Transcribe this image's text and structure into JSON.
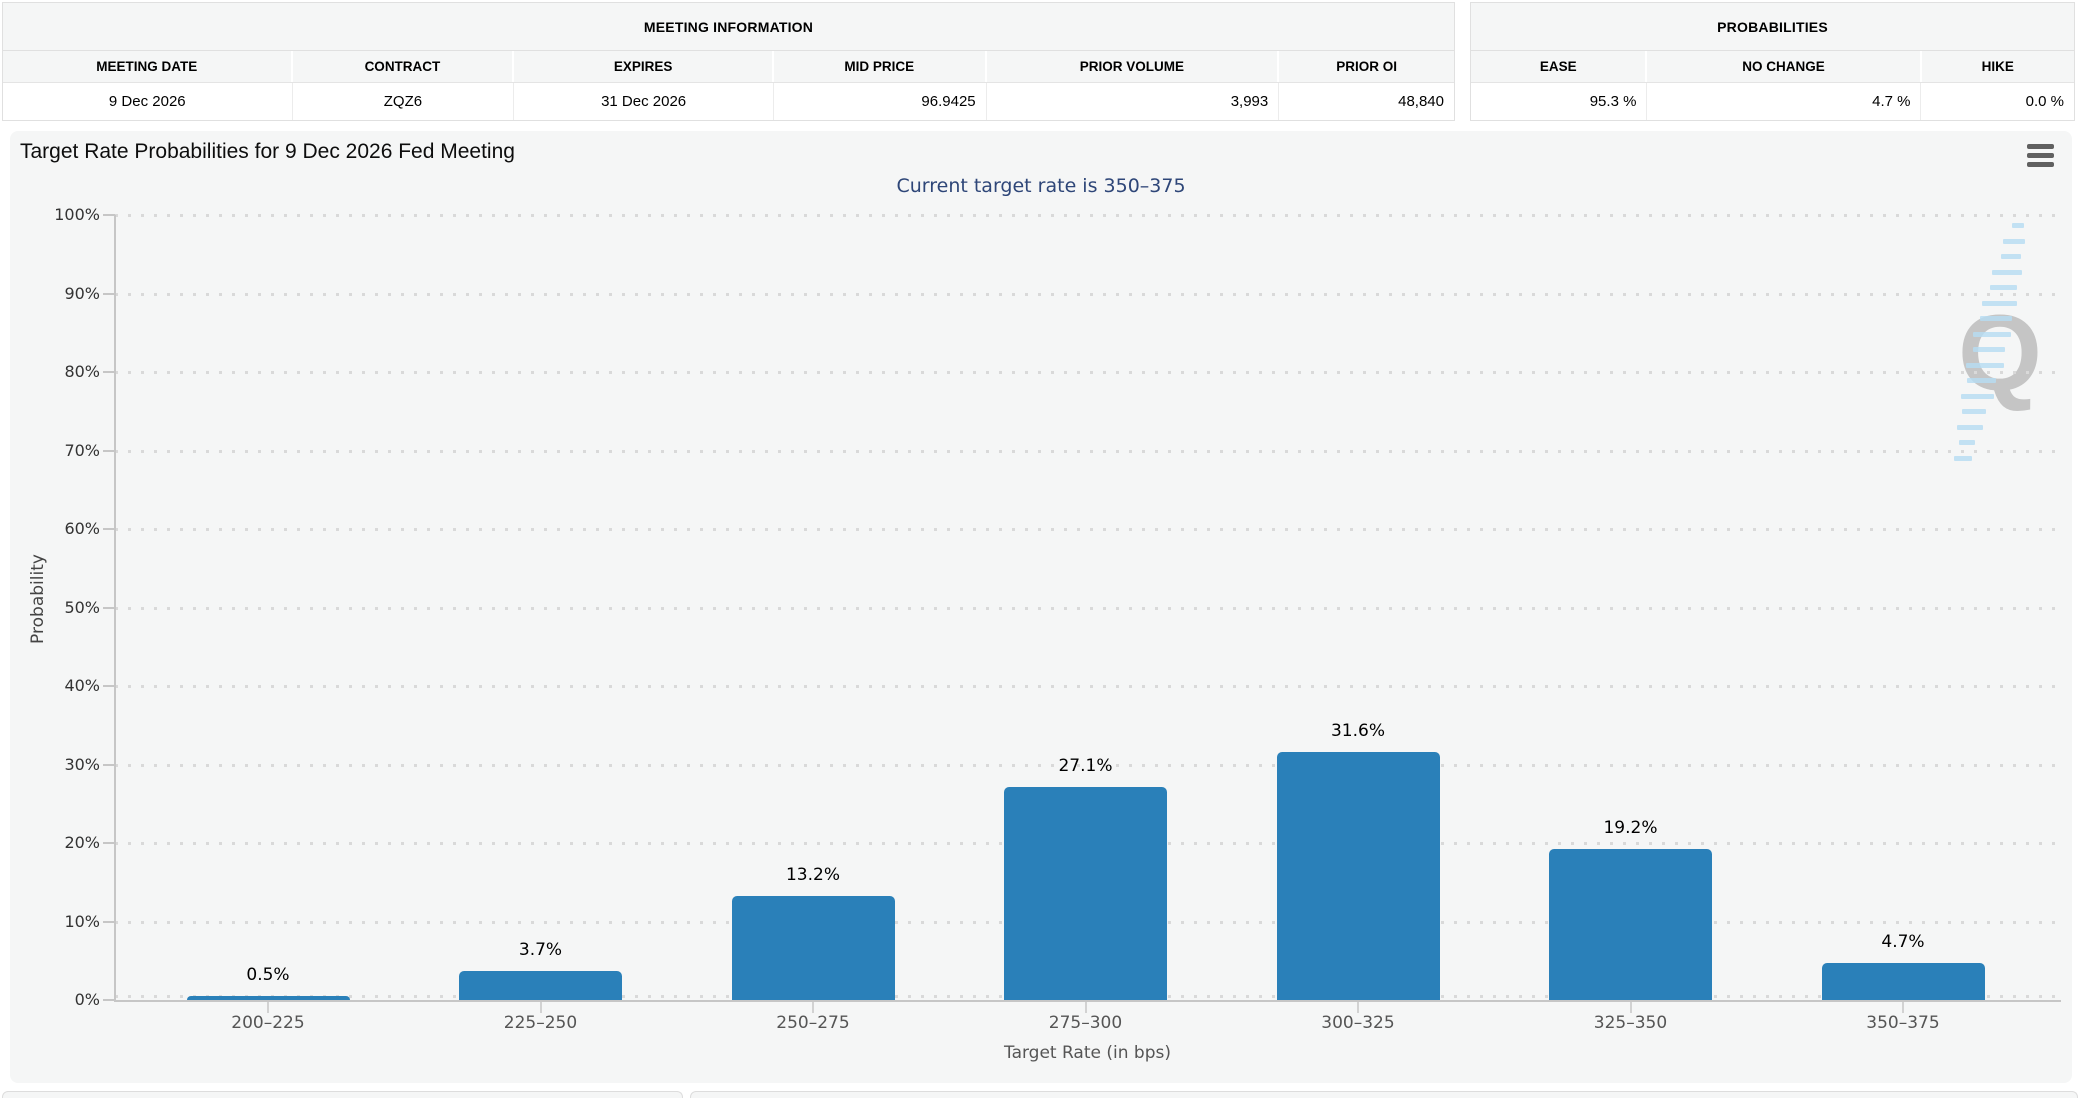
{
  "meeting_information": {
    "title": "MEETING INFORMATION",
    "columns": [
      {
        "label": "MEETING DATE",
        "value": "9 Dec 2026",
        "align": "center"
      },
      {
        "label": "CONTRACT",
        "value": "ZQZ6",
        "align": "center"
      },
      {
        "label": "EXPIRES",
        "value": "31 Dec 2026",
        "align": "center"
      },
      {
        "label": "MID PRICE",
        "value": "96.9425",
        "align": "right"
      },
      {
        "label": "PRIOR VOLUME",
        "value": "3,993",
        "align": "right"
      },
      {
        "label": "PRIOR OI",
        "value": "48,840",
        "align": "right"
      }
    ]
  },
  "probabilities": {
    "title": "PROBABILITIES",
    "columns": [
      {
        "label": "EASE",
        "value": "95.3 %",
        "align": "right"
      },
      {
        "label": "NO CHANGE",
        "value": "4.7 %",
        "align": "right"
      },
      {
        "label": "HIKE",
        "value": "0.0 %",
        "align": "right"
      }
    ]
  },
  "chart": {
    "menu_icon": "hamburger-icon",
    "watermark_letter": "Q",
    "colors": {
      "bar": "#2a80b9",
      "subtitle": "#2e4678",
      "axis": "#c6c6c6",
      "grid_dot": "#d9d9d9",
      "category_text": "#555555",
      "card_background": "#f5f6f6"
    }
  },
  "chart_data": {
    "type": "bar",
    "title": "Target Rate Probabilities for 9 Dec 2026 Fed Meeting",
    "subtitle": "Current target rate is 350–375",
    "categories": [
      "200–225",
      "225–250",
      "250–275",
      "275–300",
      "300–325",
      "325–350",
      "350–375"
    ],
    "values": [
      0.5,
      3.7,
      13.2,
      27.1,
      31.6,
      19.2,
      4.7
    ],
    "value_labels": [
      "0.5%",
      "3.7%",
      "13.2%",
      "27.1%",
      "31.6%",
      "19.2%",
      "4.7%"
    ],
    "xlabel": "Target Rate (in bps)",
    "ylabel": "Probability",
    "ylim": [
      0,
      100
    ],
    "ytick_step": 10,
    "ytick_suffix": "%",
    "grid": "dotted-horizontal",
    "legend": "none",
    "bar_color": "#2a80b9"
  }
}
